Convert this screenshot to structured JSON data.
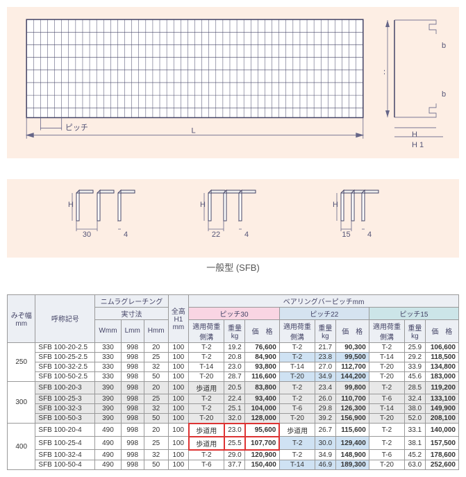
{
  "diagrams": {
    "top_labels": {
      "pitch": "ピッチ",
      "L": "L",
      "W": "W",
      "H": "H",
      "H1": "H 1",
      "b": "b"
    },
    "profiles": [
      {
        "pitch": "30",
        "bar_w": "4",
        "H": "H"
      },
      {
        "pitch": "22",
        "bar_w": "4",
        "H": "H"
      },
      {
        "pitch": "15",
        "bar_w": "4",
        "H": "H"
      }
    ],
    "type_label": "一般型 (SFB)"
  },
  "table": {
    "headers": {
      "mizo": "みぞ幅\nmm",
      "model": "呼称記号",
      "nimura": "ニムラグレーチング",
      "dims": "実寸法",
      "W": "Wmm",
      "L": "Lmm",
      "Hdim": "Hmm",
      "zenko": "全高\nH1\nmm",
      "bearing": "ベアリングバーピッチmm",
      "p30": "ピッチ30",
      "p22": "ピッチ22",
      "p15": "ピッチ15",
      "load": "適用荷重\n側溝",
      "weight": "重量\nkg",
      "price": "価　格"
    },
    "groups": [
      {
        "mizo": "250",
        "rows": [
          {
            "m": "SFB 100-20-2.5",
            "W": "330",
            "L": "998",
            "H": "20",
            "H1": "100",
            "p30": {
              "l": "T-2",
              "w": "19.2",
              "p": "76,600"
            },
            "p22": {
              "l": "T-2",
              "w": "21.7",
              "p": "90,300"
            },
            "p15": {
              "l": "T-2",
              "w": "25.9",
              "p": "106,600"
            }
          },
          {
            "m": "SFB 100-25-2.5",
            "W": "330",
            "L": "998",
            "H": "25",
            "H1": "100",
            "p30": {
              "l": "T-2",
              "w": "20.8",
              "p": "84,900"
            },
            "p22": {
              "l": "T-2",
              "w": "23.8",
              "p": "99,500",
              "hl": "blue"
            },
            "p15": {
              "l": "T-14",
              "w": "29.2",
              "p": "118,500"
            }
          },
          {
            "m": "SFB 100-32-2.5",
            "W": "330",
            "L": "998",
            "H": "32",
            "H1": "100",
            "p30": {
              "l": "T-14",
              "w": "23.0",
              "p": "93,800"
            },
            "p22": {
              "l": "T-14",
              "w": "27.0",
              "p": "112,700"
            },
            "p15": {
              "l": "T-20",
              "w": "33.9",
              "p": "134,800"
            }
          },
          {
            "m": "SFB 100-50-2.5",
            "W": "330",
            "L": "998",
            "H": "50",
            "H1": "100",
            "p30": {
              "l": "T-20",
              "w": "28.7",
              "p": "116,600"
            },
            "p22": {
              "l": "T-20",
              "w": "34.9",
              "p": "144,200",
              "hl": "blue"
            },
            "p15": {
              "l": "T-20",
              "w": "45.6",
              "p": "183,000"
            }
          }
        ]
      },
      {
        "mizo": "300",
        "grey": true,
        "rows": [
          {
            "m": "SFB 100-20-3",
            "W": "390",
            "L": "998",
            "H": "20",
            "H1": "100",
            "p30": {
              "l": "歩道用",
              "w": "20.5",
              "p": "83,800"
            },
            "p22": {
              "l": "T-2",
              "w": "23.4",
              "p": "99,800"
            },
            "p15": {
              "l": "T-2",
              "w": "28.5",
              "p": "119,200"
            }
          },
          {
            "m": "SFB 100-25-3",
            "W": "390",
            "L": "998",
            "H": "25",
            "H1": "100",
            "p30": {
              "l": "T-2",
              "w": "22.4",
              "p": "93,400"
            },
            "p22": {
              "l": "T-2",
              "w": "26.0",
              "p": "110,700",
              "hl": "blue"
            },
            "p15": {
              "l": "T-6",
              "w": "32.4",
              "p": "133,100"
            }
          },
          {
            "m": "SFB 100-32-3",
            "W": "390",
            "L": "998",
            "H": "32",
            "H1": "100",
            "p30": {
              "l": "T-2",
              "w": "25.1",
              "p": "104,000"
            },
            "p22": {
              "l": "T-6",
              "w": "29.8",
              "p": "126,300"
            },
            "p15": {
              "l": "T-14",
              "w": "38.0",
              "p": "149,900"
            }
          },
          {
            "m": "SFB 100-50-3",
            "W": "390",
            "L": "998",
            "H": "50",
            "H1": "100",
            "p30": {
              "l": "T-20",
              "w": "32.0",
              "p": "128,000"
            },
            "p22": {
              "l": "T-20",
              "w": "39.2",
              "p": "156,900",
              "hl": "blue"
            },
            "p15": {
              "l": "T-20",
              "w": "52.0",
              "p": "208,100"
            }
          }
        ]
      },
      {
        "mizo": "400",
        "rows": [
          {
            "m": "SFB 100-20-4",
            "W": "490",
            "L": "998",
            "H": "20",
            "H1": "100",
            "p30": {
              "l": "歩道用",
              "w": "23.0",
              "p": "95,600",
              "hl": "red"
            },
            "p22": {
              "l": "歩道用",
              "w": "26.7",
              "p": "115,600"
            },
            "p15": {
              "l": "T-2",
              "w": "33.1",
              "p": "140,000"
            }
          },
          {
            "m": "SFB 100-25-4",
            "W": "490",
            "L": "998",
            "H": "25",
            "H1": "100",
            "p30": {
              "l": "歩道用",
              "w": "25.5",
              "p": "107,700",
              "hl": "red"
            },
            "p22": {
              "l": "T-2",
              "w": "30.0",
              "p": "129,400",
              "hl": "blue"
            },
            "p15": {
              "l": "T-2",
              "w": "38.1",
              "p": "157,500"
            }
          },
          {
            "m": "SFB 100-32-4",
            "W": "490",
            "L": "998",
            "H": "32",
            "H1": "100",
            "p30": {
              "l": "T-2",
              "w": "29.0",
              "p": "120,900"
            },
            "p22": {
              "l": "T-2",
              "w": "34.9",
              "p": "148,900"
            },
            "p15": {
              "l": "T-6",
              "w": "45.2",
              "p": "178,600"
            }
          },
          {
            "m": "SFB 100-50-4",
            "W": "490",
            "L": "998",
            "H": "50",
            "H1": "100",
            "p30": {
              "l": "T-6",
              "w": "37.7",
              "p": "150,400"
            },
            "p22": {
              "l": "T-14",
              "w": "46.9",
              "p": "189,300",
              "hl": "blue"
            },
            "p15": {
              "l": "T-20",
              "w": "63.0",
              "p": "252,600"
            }
          }
        ]
      }
    ]
  }
}
